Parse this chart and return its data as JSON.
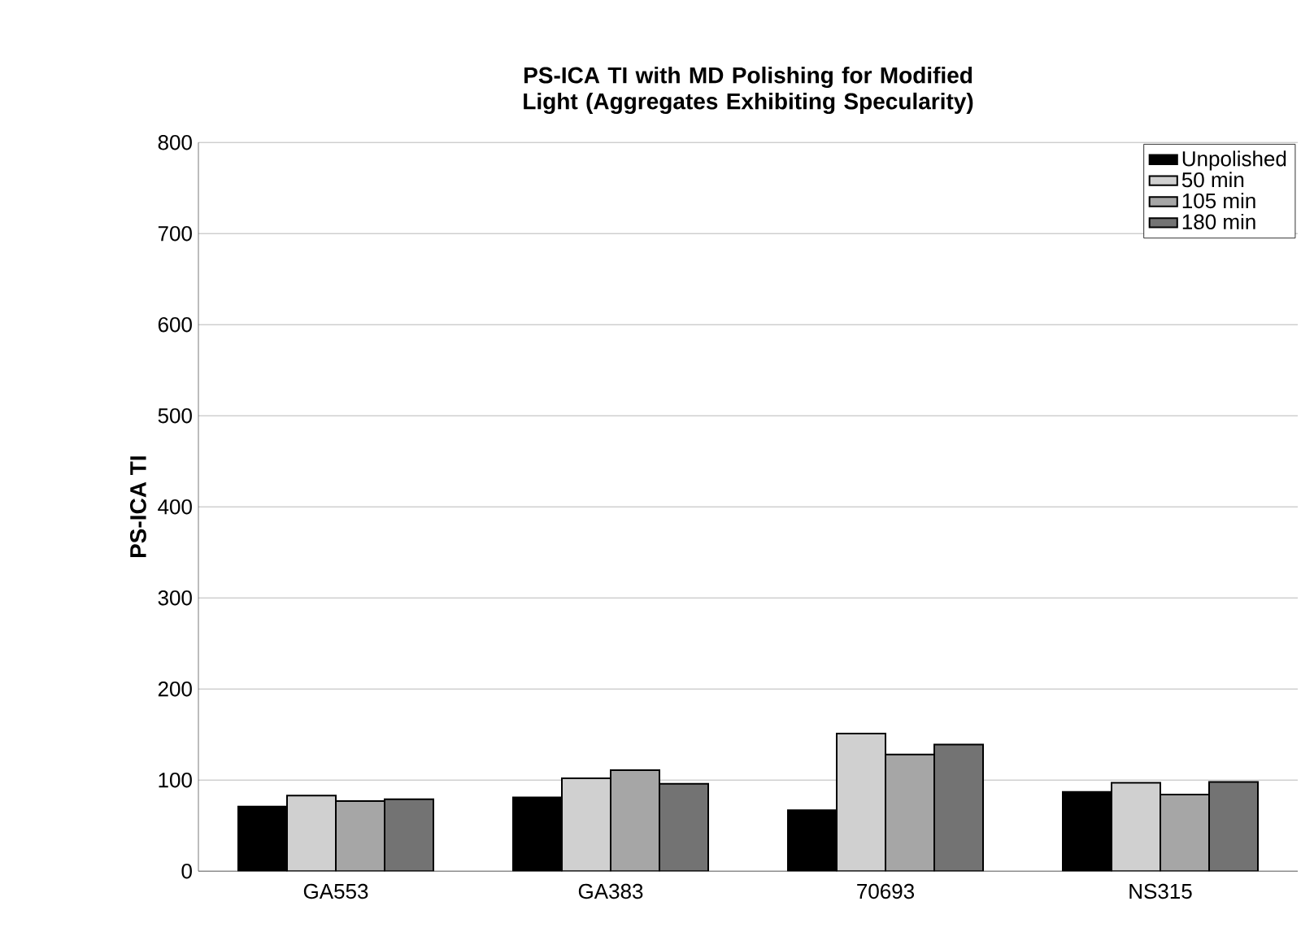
{
  "chart_data": {
    "type": "bar",
    "title": "PS-ICA TI with MD Polishing for Modified Light (Aggregates Exhibiting Specularity)",
    "ylabel": "PS-ICA TI",
    "categories": [
      "GA553",
      "GA383",
      "70693",
      "NS315"
    ],
    "series": [
      {
        "name": "Unpolished",
        "color": "#000000",
        "values": [
          71,
          81,
          67,
          87
        ]
      },
      {
        "name": "50 min",
        "color": "#d0d0d0",
        "values": [
          83,
          102,
          151,
          97
        ]
      },
      {
        "name": "105 min",
        "color": "#a6a6a6",
        "values": [
          77,
          111,
          128,
          84
        ]
      },
      {
        "name": "180 min",
        "color": "#737373",
        "values": [
          79,
          96,
          139,
          98
        ]
      }
    ],
    "ylim": [
      0,
      800
    ],
    "yticks": [
      0,
      100,
      200,
      300,
      400,
      500,
      600,
      700,
      800
    ],
    "grid": "y",
    "legend": "top right"
  }
}
